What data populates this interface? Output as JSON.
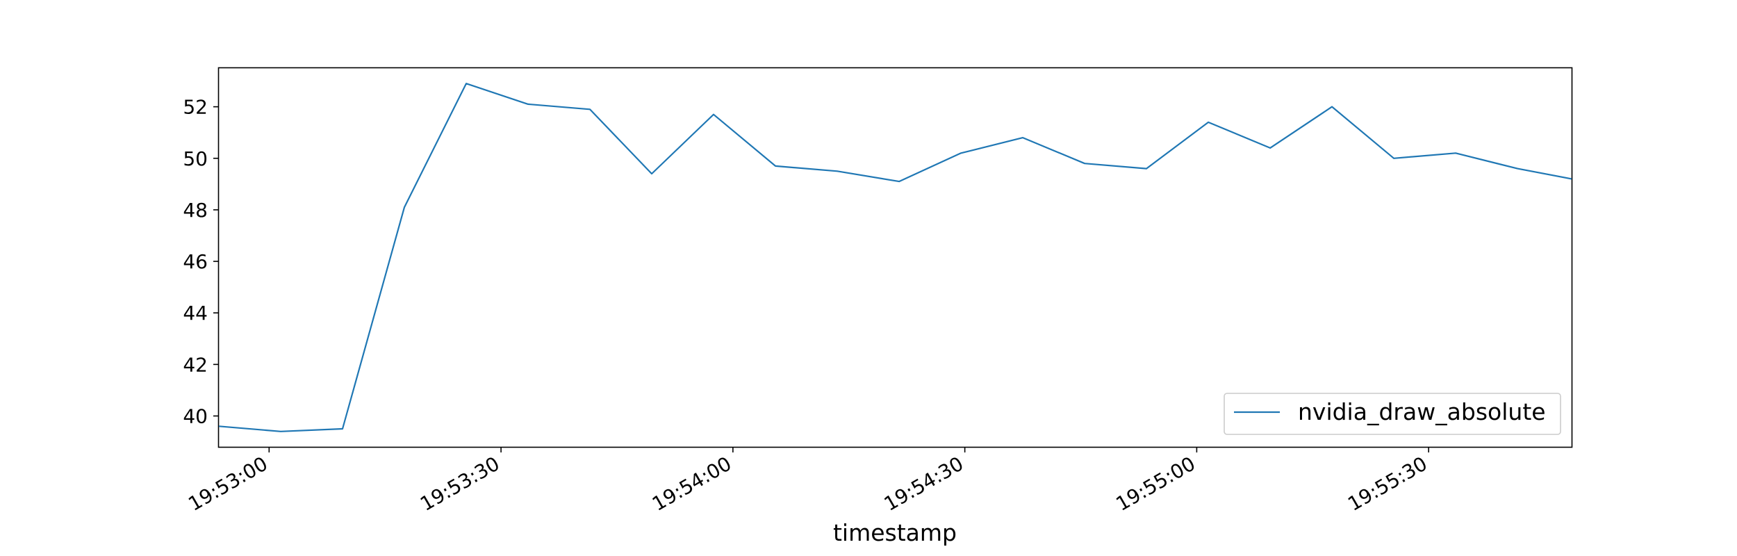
{
  "chart_data": {
    "type": "line",
    "title": "",
    "xlabel": "timestamp",
    "ylabel": "",
    "x_ticks": [
      "19:53:00",
      "19:53:30",
      "19:54:00",
      "19:54:30",
      "19:55:00",
      "19:55:30"
    ],
    "y_ticks": [
      40,
      42,
      44,
      46,
      48,
      50,
      52
    ],
    "xlim": [
      "19:52:53.5",
      "19:55:48.5"
    ],
    "ylim": [
      38.8,
      53.5
    ],
    "grid": false,
    "legend_position": "lower right",
    "series": [
      {
        "name": "nvidia_draw_absolute",
        "color": "#1f77b4",
        "x": [
          "19:52:53.5",
          "19:53:01.5",
          "19:53:09.5",
          "19:53:17.5",
          "19:53:25.5",
          "19:53:33.5",
          "19:53:41.5",
          "19:53:49.5",
          "19:53:57.5",
          "19:54:05.5",
          "19:54:13.5",
          "19:54:21.5",
          "19:54:29.5",
          "19:54:37.5",
          "19:54:45.5",
          "19:54:53.5",
          "19:55:01.5",
          "19:55:09.5",
          "19:55:17.5",
          "19:55:25.5",
          "19:55:33.5",
          "19:55:41.5",
          "19:55:48.5"
        ],
        "values": [
          39.6,
          39.4,
          39.5,
          48.1,
          52.9,
          52.1,
          51.9,
          49.4,
          51.7,
          49.7,
          49.5,
          49.1,
          50.2,
          50.8,
          49.8,
          49.6,
          51.4,
          50.4,
          52.0,
          50.0,
          50.2,
          49.6,
          49.2
        ]
      }
    ]
  }
}
